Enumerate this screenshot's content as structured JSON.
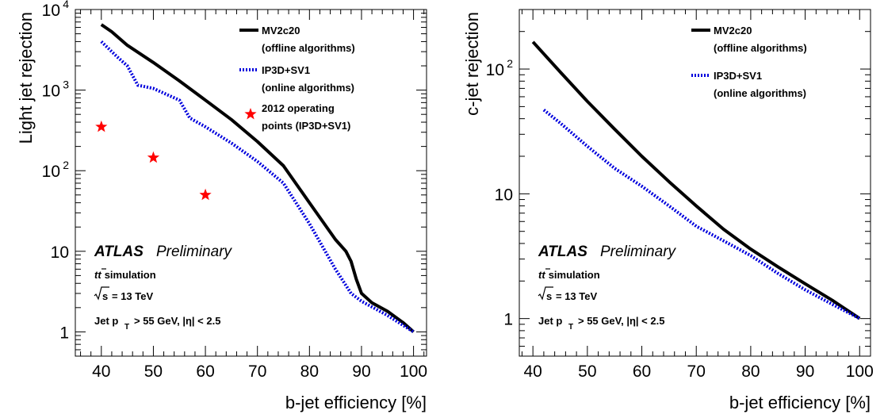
{
  "chart_data": [
    {
      "type": "line",
      "xlabel": "b-jet efficiency [%]",
      "ylabel": "Light jet rejection",
      "y_scale": "log",
      "xlim": [
        35,
        102.5
      ],
      "ylim": [
        0.5,
        10000
      ],
      "x_ticks": [
        {
          "v": 40,
          "label": "40"
        },
        {
          "v": 50,
          "label": "50"
        },
        {
          "v": 60,
          "label": "60"
        },
        {
          "v": 70,
          "label": "70"
        },
        {
          "v": 80,
          "label": "80"
        },
        {
          "v": 90,
          "label": "90"
        },
        {
          "v": 100,
          "label": "100"
        }
      ],
      "y_ticks": [
        {
          "v": 1,
          "label": "1"
        },
        {
          "v": 10,
          "label": "10"
        },
        {
          "v": 100,
          "label": "10",
          "sup": "2"
        },
        {
          "v": 1000,
          "label": "10",
          "sup": "3"
        },
        {
          "v": 10000,
          "label": "10",
          "sup": "4"
        }
      ],
      "series": [
        {
          "name": "MV2c20",
          "name2": "(offline algorithms)",
          "color": "#000000",
          "style": "solid",
          "x": [
            40,
            42,
            45,
            50,
            55,
            60,
            65,
            70,
            75,
            80,
            85,
            87,
            88,
            89,
            90,
            92,
            95,
            98,
            100
          ],
          "y": [
            6500,
            5300,
            3600,
            2200,
            1300,
            750,
            430,
            230,
            115,
            40,
            14,
            10,
            7.5,
            4.5,
            3,
            2.3,
            1.8,
            1.3,
            1.0
          ]
        },
        {
          "name": "IP3D+SV1",
          "name2": "(online algorithms)",
          "color": "#0000dd",
          "style": "dotted",
          "x": [
            40,
            43,
            45,
            47,
            50,
            55,
            57,
            60,
            65,
            70,
            75,
            80,
            85,
            88,
            90,
            95,
            100
          ],
          "y": [
            4000,
            2600,
            2000,
            1150,
            1050,
            750,
            450,
            350,
            220,
            130,
            70,
            22,
            6,
            3.0,
            2.4,
            1.6,
            1.0
          ]
        }
      ],
      "markers": {
        "name": "2012 operating",
        "name2": "points (IP3D+SV1)",
        "color": "#ff0000",
        "symbol": "star",
        "x": [
          40,
          50,
          60
        ],
        "y": [
          350,
          145,
          50
        ]
      },
      "labels": {
        "atlas": "ATLAS",
        "preliminary": "Preliminary",
        "sample": "simulation",
        "energy": "= 13 TeV",
        "cuts": "> 55 GeV, |η| < 2.5"
      }
    },
    {
      "type": "line",
      "xlabel": "b-jet efficiency [%]",
      "ylabel": "c-jet rejection",
      "y_scale": "log",
      "xlim": [
        37.5,
        102
      ],
      "ylim": [
        0.5,
        300
      ],
      "x_ticks": [
        {
          "v": 40,
          "label": "40"
        },
        {
          "v": 50,
          "label": "50"
        },
        {
          "v": 60,
          "label": "60"
        },
        {
          "v": 70,
          "label": "70"
        },
        {
          "v": 80,
          "label": "80"
        },
        {
          "v": 90,
          "label": "90"
        },
        {
          "v": 100,
          "label": "100"
        }
      ],
      "y_ticks": [
        {
          "v": 1,
          "label": "1"
        },
        {
          "v": 10,
          "label": "10"
        },
        {
          "v": 100,
          "label": "10",
          "sup": "2"
        }
      ],
      "series": [
        {
          "name": "MV2c20",
          "name2": "(offline algorithms)",
          "color": "#000000",
          "style": "solid",
          "x": [
            40,
            45,
            50,
            55,
            60,
            65,
            70,
            75,
            80,
            85,
            90,
            95,
            100
          ],
          "y": [
            165,
            95,
            55,
            33,
            20,
            12.5,
            8,
            5.2,
            3.6,
            2.6,
            1.9,
            1.4,
            1.0
          ]
        },
        {
          "name": "IP3D+SV1",
          "name2": "(online algorithms)",
          "color": "#0000dd",
          "style": "dotted",
          "x": [
            42,
            45,
            50,
            55,
            60,
            65,
            70,
            75,
            80,
            85,
            90,
            95,
            100
          ],
          "y": [
            47,
            37,
            24,
            16,
            11.5,
            8,
            5.5,
            4.2,
            3.2,
            2.3,
            1.7,
            1.3,
            1.0
          ]
        }
      ],
      "labels": {
        "atlas": "ATLAS",
        "preliminary": "Preliminary",
        "sample": "simulation",
        "energy": "= 13 TeV",
        "cuts": "> 55 GeV, |η| < 2.5"
      }
    }
  ]
}
